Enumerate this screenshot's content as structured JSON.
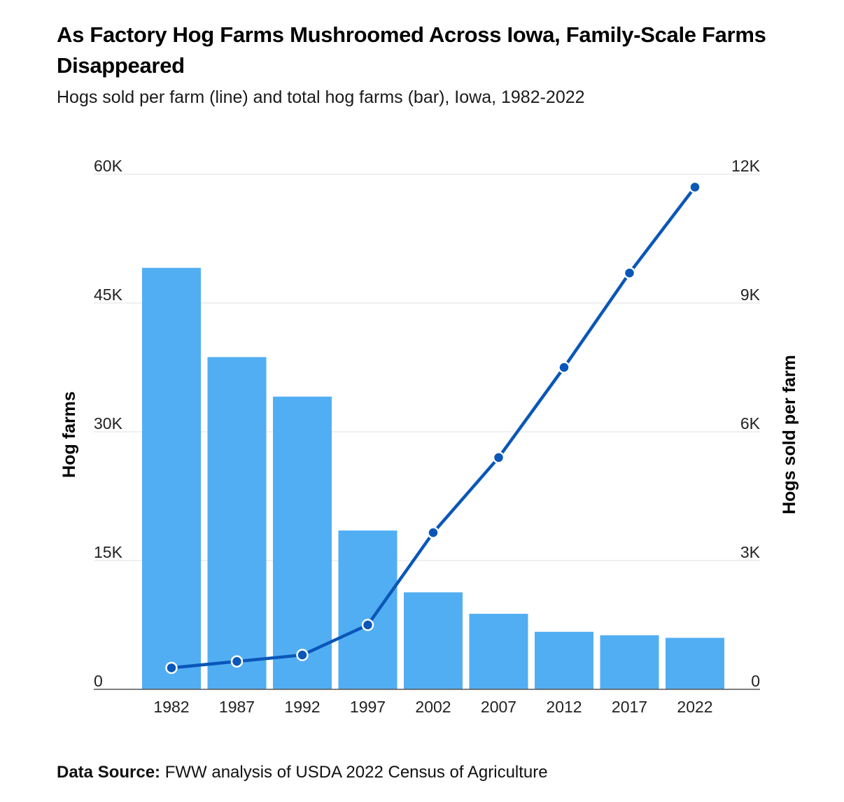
{
  "colors": {
    "bar": "#52aef3",
    "line": "#0a57b8",
    "grid": "#e2e2e2",
    "axis": "#555555"
  },
  "header": {
    "title": "As Factory Hog Farms Mushroomed Across Iowa, Family-Scale Farms Disappeared",
    "subtitle": "Hogs sold per farm (line) and total hog farms (bar), Iowa, 1982-2022"
  },
  "footer": {
    "source_label": "Data Source:",
    "source_text": "FWW analysis of USDA 2022 Census of Agriculture"
  },
  "chart_data": {
    "type": "bar+line",
    "title": "As Factory Hog Farms Mushroomed Across Iowa, Family-Scale Farms Disappeared",
    "subtitle": "Hogs sold per farm (line) and total hog farms (bar), Iowa, 1982-2022",
    "categories": [
      "1982",
      "1987",
      "1992",
      "1997",
      "2002",
      "2007",
      "2012",
      "2017",
      "2022"
    ],
    "left_axis": {
      "label": "Hog farms",
      "range": [
        0,
        60000
      ],
      "ticks": [
        0,
        15000,
        30000,
        45000,
        60000
      ],
      "tick_labels": [
        "0",
        "15K",
        "30K",
        "45K",
        "60K"
      ]
    },
    "right_axis": {
      "label": "Hogs sold per farm",
      "range": [
        0,
        12000
      ],
      "ticks": [
        0,
        3000,
        6000,
        9000,
        12000
      ],
      "tick_labels": [
        "0",
        "3K",
        "6K",
        "9K",
        "12K"
      ]
    },
    "series": [
      {
        "name": "Hog farms",
        "type": "bar",
        "axis": "left",
        "values": [
          49100,
          38700,
          34100,
          18500,
          11300,
          8800,
          6700,
          6300,
          6000
        ]
      },
      {
        "name": "Hogs sold per farm",
        "type": "line",
        "axis": "right",
        "values": [
          500,
          650,
          800,
          1500,
          3650,
          5400,
          7500,
          9700,
          11700
        ]
      }
    ],
    "grid": true,
    "legend": "none"
  }
}
